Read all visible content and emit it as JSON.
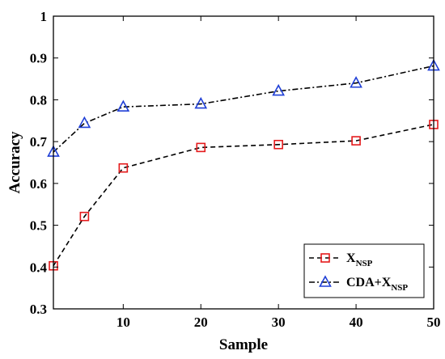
{
  "chart_data": {
    "type": "line",
    "xlabel": "Sample",
    "ylabel": "Accuracy",
    "xlim": [
      1,
      50
    ],
    "ylim": [
      0.3,
      1
    ],
    "xticks": [
      10,
      20,
      30,
      40,
      50
    ],
    "yticks": [
      0.3,
      0.4,
      0.5,
      0.6,
      0.7,
      0.8,
      0.9,
      1
    ],
    "ytick_labels": [
      "0.3",
      "0.4",
      "0.5",
      "0.6",
      "0.7",
      "0.8",
      "0.9",
      "1"
    ],
    "x": [
      1,
      5,
      10,
      20,
      30,
      40,
      50
    ],
    "grid": false,
    "legend_position": "bottom-right",
    "series": [
      {
        "name": "X",
        "name_subscript": "NSP",
        "values": [
          0.403,
          0.521,
          0.637,
          0.686,
          0.693,
          0.702,
          0.741
        ],
        "color": "#e41a1c",
        "marker": "square",
        "line_style": "dashed"
      },
      {
        "name": "CDA+X",
        "name_subscript": "NSP",
        "values": [
          0.675,
          0.744,
          0.783,
          0.79,
          0.821,
          0.84,
          0.881
        ],
        "color": "#1f3fd6",
        "marker": "triangle",
        "line_style": "dash-dot"
      }
    ]
  }
}
